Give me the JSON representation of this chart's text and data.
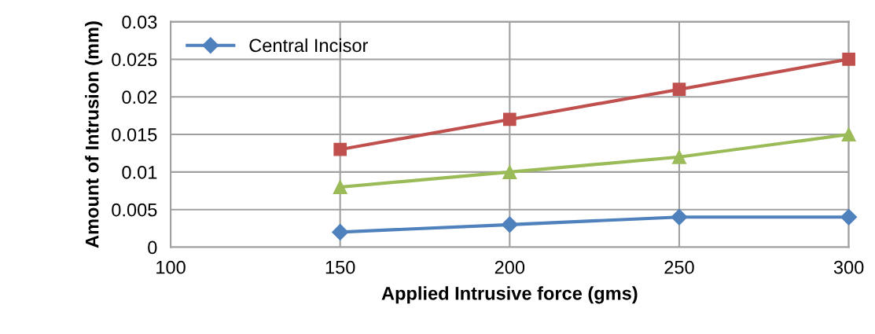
{
  "chart_data": {
    "type": "line",
    "xlabel": "Applied Intrusive force (gms)",
    "ylabel": "Amount of Intrusion (mm)",
    "x": [
      150,
      200,
      250,
      300
    ],
    "series": [
      {
        "name": "Central Incisor",
        "color": "#4f81bd",
        "marker": "diamond",
        "values": [
          0.002,
          0.003,
          0.004,
          0.004
        ]
      },
      {
        "color": "#c0504d",
        "marker": "square",
        "values": [
          0.013,
          0.017,
          0.021,
          0.025
        ]
      },
      {
        "color": "#9bbb59",
        "marker": "triangle",
        "values": [
          0.008,
          0.01,
          0.012,
          0.015
        ]
      }
    ],
    "xlim": [
      100,
      300
    ],
    "xticks": [
      100,
      150,
      200,
      250,
      300
    ],
    "ylim": [
      0,
      0.03
    ],
    "yticks": [
      0,
      0.005,
      0.01,
      0.015,
      0.02,
      0.025,
      0.03
    ],
    "grid": true,
    "legend": "top left",
    "line_style": "solid"
  }
}
